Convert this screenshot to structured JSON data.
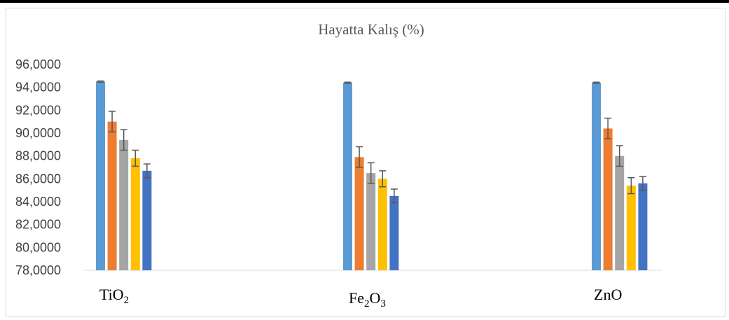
{
  "chart_data": {
    "type": "bar",
    "title": "Hayatta Kalış (%)",
    "categories": [
      "TiO2",
      "Fe2O3",
      "ZnO"
    ],
    "category_labels": [
      {
        "base": "TiO",
        "sub": "2",
        "tail": ""
      },
      {
        "base": "Fe",
        "sub": "2",
        "tail": "O",
        "sub2": "3"
      },
      {
        "base": "ZnO",
        "sub": "",
        "tail": ""
      }
    ],
    "ylim": [
      78,
      96
    ],
    "yticks": [
      "78,0000",
      "80,0000",
      "82,0000",
      "84,0000",
      "86,0000",
      "88,0000",
      "90,0000",
      "92,0000",
      "94,0000",
      "96,0000"
    ],
    "ytick_values": [
      78,
      80,
      82,
      84,
      86,
      88,
      90,
      92,
      94,
      96
    ],
    "series": [
      {
        "color": "#5b9bd5",
        "values": [
          94.5,
          94.4,
          94.4
        ],
        "errors": [
          0.05,
          0.05,
          0.05
        ]
      },
      {
        "color": "#ed7d31",
        "values": [
          91.0,
          87.9,
          90.4
        ],
        "errors": [
          0.9,
          0.9,
          0.9
        ]
      },
      {
        "color": "#a5a5a5",
        "values": [
          89.4,
          86.5,
          88.0
        ],
        "errors": [
          0.9,
          0.9,
          0.9
        ]
      },
      {
        "color": "#ffc000",
        "values": [
          87.8,
          86.0,
          85.4
        ],
        "errors": [
          0.7,
          0.7,
          0.7
        ]
      },
      {
        "color": "#4472c4",
        "values": [
          86.7,
          84.5,
          85.6
        ],
        "errors": [
          0.6,
          0.6,
          0.6
        ]
      }
    ],
    "grid": false,
    "legend": "none"
  }
}
